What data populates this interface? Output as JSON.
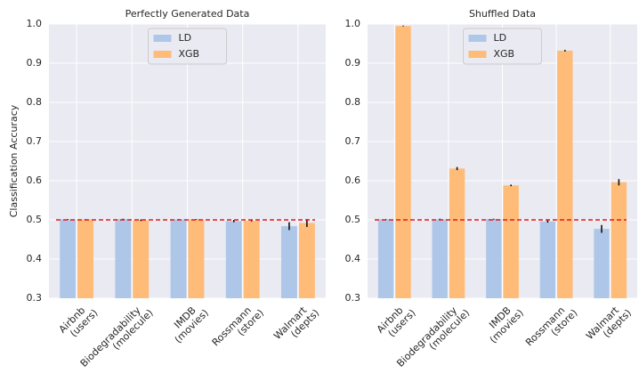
{
  "chart_data": [
    {
      "type": "bar",
      "title": "Perfectly Generated Data",
      "ylabel": "Classification Accuracy",
      "categories": [
        [
          "Airbnb",
          "(users)"
        ],
        [
          "Biodegradability",
          "(molecule)"
        ],
        [
          "IMDB",
          "(movies)"
        ],
        [
          "Rossmann",
          "(store)"
        ],
        [
          "Walmart",
          "(depts)"
        ]
      ],
      "series": [
        {
          "name": "LD",
          "color": "#aec7e8",
          "values": [
            0.501,
            0.502,
            0.501,
            0.497,
            0.484
          ],
          "errors": [
            0.001,
            0.001,
            0.001,
            0.003,
            0.01
          ]
        },
        {
          "name": "XGB",
          "color": "#ffbb78",
          "values": [
            0.501,
            0.499,
            0.501,
            0.498,
            0.492
          ],
          "errors": [
            0.001,
            0.002,
            0.001,
            0.002,
            0.01
          ]
        }
      ],
      "hline": 0.5,
      "hline_color": "#e41a1c",
      "ylim": [
        0.3,
        1
      ],
      "yticks": [
        0.3,
        0.4,
        0.5,
        0.6,
        0.7,
        0.8,
        0.9,
        {
          "value": 1,
          "label": "1.0"
        }
      ],
      "grid": true,
      "legend": "upper center"
    },
    {
      "type": "bar",
      "title": "Shuffled Data",
      "categories": [
        [
          "Airbnb",
          "(users)"
        ],
        [
          "Biodegradability",
          "(molecule)"
        ],
        [
          "IMDB",
          "(movies)"
        ],
        [
          "Rossmann",
          "(store)"
        ],
        [
          "Walmart",
          "(depts)"
        ]
      ],
      "series": [
        {
          "name": "LD",
          "color": "#aec7e8",
          "values": [
            0.501,
            0.501,
            0.502,
            0.496,
            0.477
          ],
          "errors": [
            0.001,
            0.002,
            0.001,
            0.003,
            0.01
          ]
        },
        {
          "name": "XGB",
          "color": "#ffbb78",
          "values": [
            0.995,
            0.631,
            0.588,
            0.932,
            0.596
          ],
          "errors": [
            0.001,
            0.004,
            0.002,
            0.002,
            0.008
          ]
        }
      ],
      "hline": 0.5,
      "hline_color": "#e41a1c",
      "ylim": [
        0.3,
        1
      ],
      "yticks": [
        0.3,
        0.4,
        0.5,
        0.6,
        0.7,
        0.8,
        0.9,
        {
          "value": 1,
          "label": "1.0"
        }
      ],
      "grid": true,
      "legend": "upper center"
    }
  ]
}
